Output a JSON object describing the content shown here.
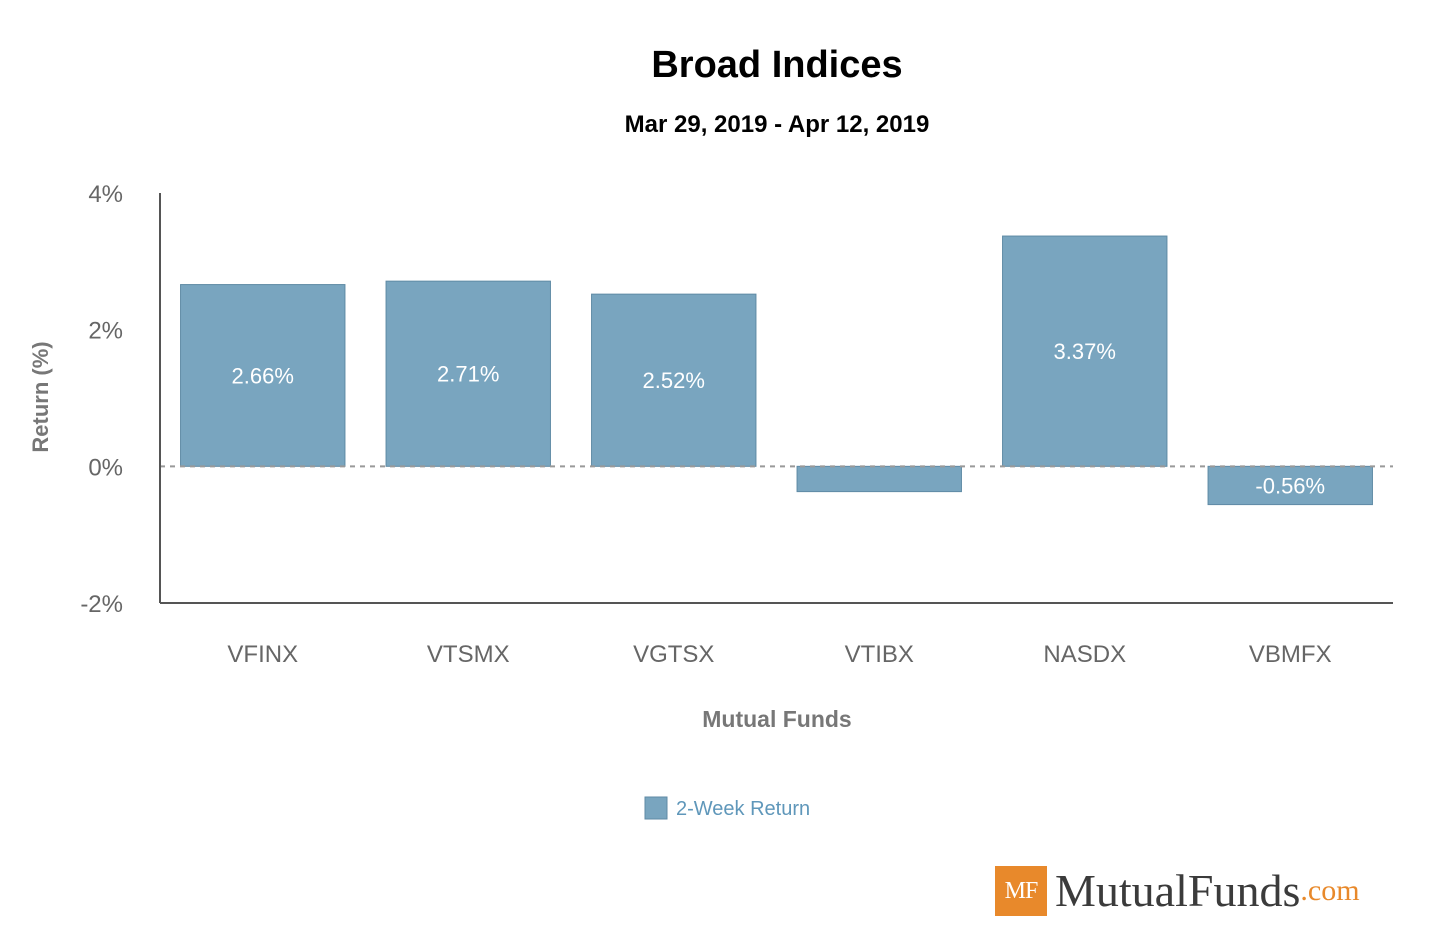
{
  "chart_data": {
    "type": "bar",
    "title": "Broad Indices",
    "subtitle": "Mar 29, 2019 - Apr 12, 2019",
    "xlabel": "Mutual Funds",
    "ylabel": "Return (%)",
    "categories": [
      "VFINX",
      "VTSMX",
      "VGTSX",
      "VTIBX",
      "NASDX",
      "VBMFX"
    ],
    "series": [
      {
        "name": "2-Week Return",
        "values": [
          2.66,
          2.71,
          2.52,
          -0.37,
          3.37,
          -0.56
        ],
        "labels": [
          "2.66%",
          "2.71%",
          "2.52%",
          "",
          "3.37%",
          "-0.56%"
        ]
      }
    ],
    "ylim": [
      -2,
      4
    ],
    "yticks": [
      -2,
      0,
      2,
      4
    ],
    "ytick_labels": [
      "-2%",
      "0%",
      "2%",
      "4%"
    ],
    "grid": false,
    "zero_line": "dashed",
    "legend_position": "bottom-center",
    "colors": {
      "bar": "#79a5bf",
      "bar_border": "#5f8aa5",
      "axis": "#555555",
      "tick_label": "#666666",
      "legend_text": "#5f97ba",
      "title": "#000000"
    }
  },
  "logo": {
    "badge": "MF",
    "name": "MutualFunds",
    "suffix": ".com",
    "badge_color": "#e8892b"
  }
}
